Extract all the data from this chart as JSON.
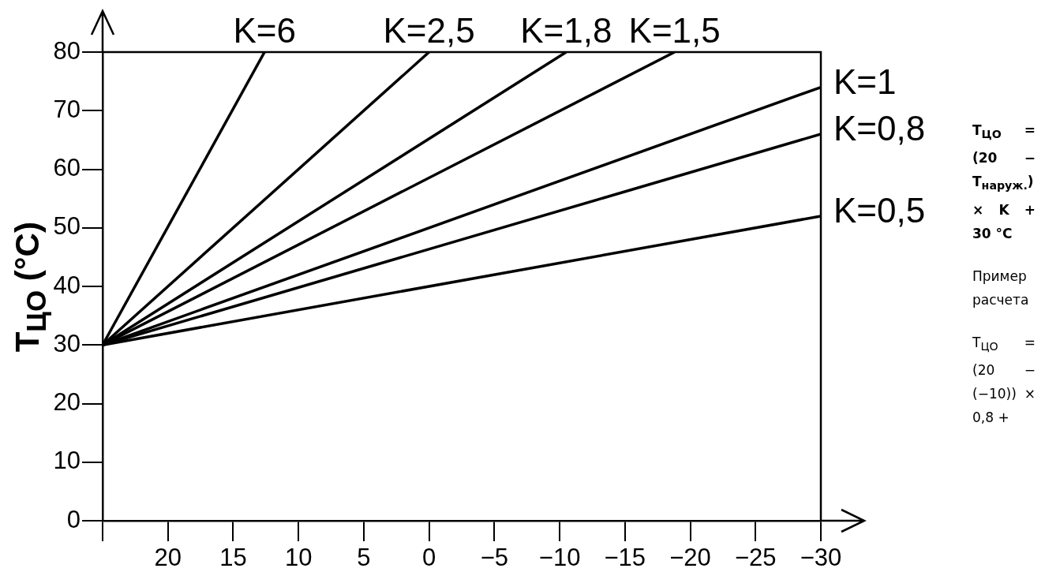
{
  "chart_data": {
    "type": "line",
    "ylabel": "T$_{ЦО}$ (°C)",
    "xlim": [
      25,
      -30
    ],
    "xticks": [
      {
        "value": 25,
        "label": null
      },
      20,
      15,
      10,
      5,
      0,
      {
        "value": -5,
        "label": "−5"
      },
      {
        "value": -10,
        "label": "−10"
      },
      {
        "value": -15,
        "label": "−15"
      },
      {
        "value": -20,
        "label": "−20"
      },
      {
        "value": -25,
        "label": "−25"
      },
      {
        "value": -30,
        "label": "−30"
      }
    ],
    "ylim": [
      0,
      80
    ],
    "yticks": [
      0,
      10,
      20,
      30,
      40,
      50,
      60,
      70,
      80
    ],
    "grid": false,
    "legend": false,
    "marker": "none",
    "line_style": "solid",
    "series": [
      {
        "name": "K=6",
        "color": "#000000",
        "x": [
          25,
          12.6
        ],
        "values": [
          30,
          80
        ]
      },
      {
        "name": "K=2,5",
        "color": "#000000",
        "x": [
          25,
          0
        ],
        "values": [
          30,
          80
        ]
      },
      {
        "name": "K=1,8",
        "color": "#000000",
        "x": [
          25,
          -10.5
        ],
        "values": [
          30,
          80
        ]
      },
      {
        "name": "K=1,5",
        "color": "#000000",
        "x": [
          25,
          -18.8
        ],
        "values": [
          30,
          80
        ]
      },
      {
        "name": "K=1",
        "color": "#000000",
        "x": [
          25,
          -30
        ],
        "values": [
          30,
          74
        ]
      },
      {
        "name": "K=0,8",
        "color": "#000000",
        "x": [
          25,
          -30
        ],
        "values": [
          30,
          66
        ]
      },
      {
        "name": "K=0,5",
        "color": "#000000",
        "x": [
          25,
          -30
        ],
        "values": [
          30,
          52
        ]
      }
    ],
    "annotations": [
      "T$_{ЦО}$ = (20 − T$_{наруж.}$) × K + 30 °C",
      "Пример расчета",
      "T$_{ЦО}$ = (20 − (−10)) × 0,8 +"
    ]
  }
}
